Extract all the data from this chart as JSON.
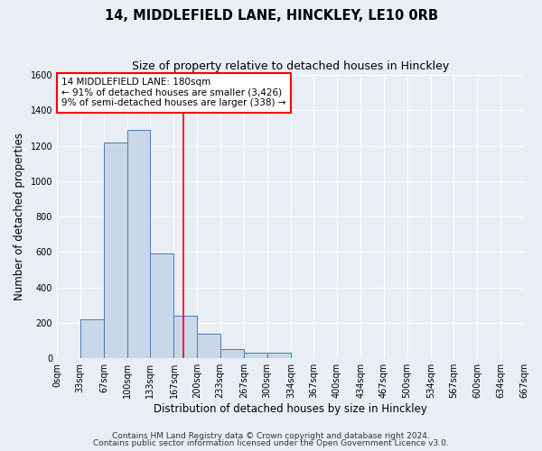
{
  "title": "14, MIDDLEFIELD LANE, HINCKLEY, LE10 0RB",
  "subtitle": "Size of property relative to detached houses in Hinckley",
  "xlabel": "Distribution of detached houses by size in Hinckley",
  "ylabel": "Number of detached properties",
  "bar_edges": [
    0,
    33,
    67,
    100,
    133,
    167,
    200,
    233,
    267,
    300,
    334,
    367,
    400,
    434,
    467,
    500,
    534,
    567,
    600,
    634,
    667
  ],
  "bar_heights": [
    0,
    220,
    1220,
    1290,
    590,
    240,
    140,
    50,
    30,
    30,
    0,
    0,
    0,
    0,
    0,
    0,
    0,
    0,
    0,
    0
  ],
  "bar_color": "#c8d8e8",
  "bar_edge_color": "#4a7ab5",
  "vline_x": 180,
  "vline_color": "red",
  "annotation_line1": "14 MIDDLEFIELD LANE: 180sqm",
  "annotation_line2": "← 91% of detached houses are smaller (3,426)",
  "annotation_line3": "9% of semi-detached houses are larger (338) →",
  "box_edge_color": "red",
  "ylim": [
    0,
    1600
  ],
  "yticks": [
    0,
    200,
    400,
    600,
    800,
    1000,
    1200,
    1400,
    1600
  ],
  "xlim": [
    0,
    667
  ],
  "xtick_labels": [
    "0sqm",
    "33sqm",
    "67sqm",
    "100sqm",
    "133sqm",
    "167sqm",
    "200sqm",
    "233sqm",
    "267sqm",
    "300sqm",
    "334sqm",
    "367sqm",
    "400sqm",
    "434sqm",
    "467sqm",
    "500sqm",
    "534sqm",
    "567sqm",
    "600sqm",
    "634sqm",
    "667sqm"
  ],
  "xtick_positions": [
    0,
    33,
    67,
    100,
    133,
    167,
    200,
    233,
    267,
    300,
    334,
    367,
    400,
    434,
    467,
    500,
    534,
    567,
    600,
    634,
    667
  ],
  "footer_line1": "Contains HM Land Registry data © Crown copyright and database right 2024.",
  "footer_line2": "Contains public sector information licensed under the Open Government Licence v3.0.",
  "background_color": "#e8eef4",
  "plot_background_color": "#e8eef4",
  "grid_color": "white",
  "title_fontsize": 10.5,
  "subtitle_fontsize": 9,
  "axis_label_fontsize": 8.5,
  "tick_fontsize": 7,
  "footer_fontsize": 6.5,
  "annotation_fontsize": 7.5
}
